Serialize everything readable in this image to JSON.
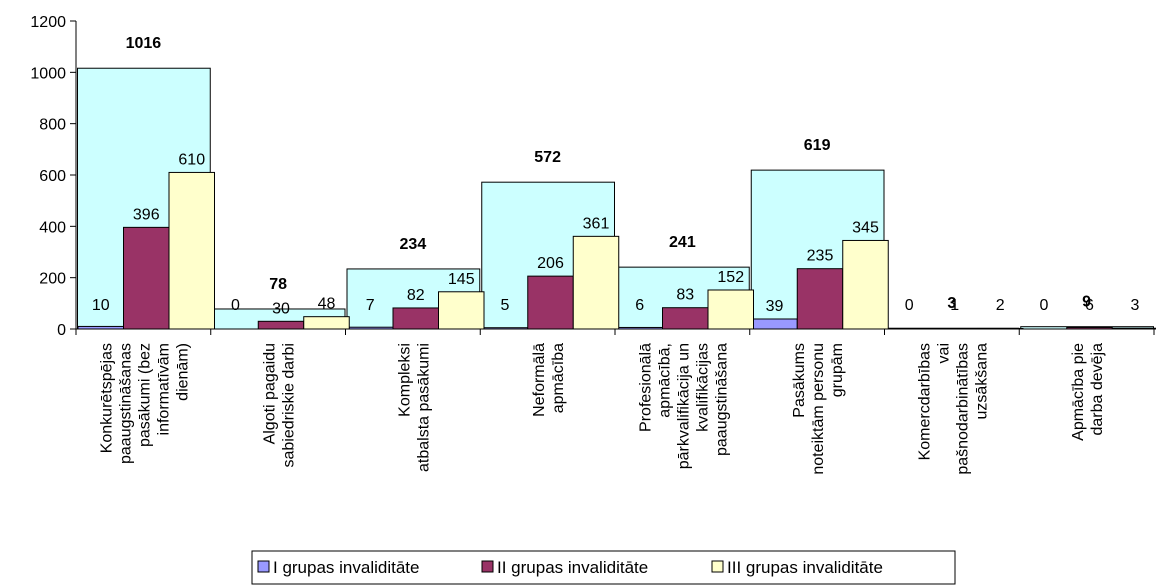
{
  "chart_data": {
    "type": "bar",
    "ylim": [
      0,
      1200
    ],
    "yticks": [
      0,
      200,
      400,
      600,
      800,
      1000,
      1200
    ],
    "categories": [
      {
        "lines": [
          "Konkurētspējas",
          "paaugstināšanas",
          "pasākumi (bez",
          "informatīvām",
          "dienām)"
        ]
      },
      {
        "lines": [
          "Algoti pagaidu",
          "sabiedriskie darbi"
        ]
      },
      {
        "lines": [
          "Kompleksi",
          "atbalsta pasākumi"
        ]
      },
      {
        "lines": [
          "Neformālā",
          "apmācība"
        ]
      },
      {
        "lines": [
          "Profesionālā",
          "apmācībā,",
          "pārkvalifikācija un",
          "kvalifikācijas",
          "paaugstināšana"
        ]
      },
      {
        "lines": [
          "Pasākums",
          "noteiktām personu",
          "grupām"
        ]
      },
      {
        "lines": [
          "Komercdarbības",
          "vai",
          "pašnodarbinātības",
          "uzsākšana"
        ]
      },
      {
        "lines": [
          "Apmācība pie",
          "darba devēja"
        ]
      }
    ],
    "totals": [
      1016,
      78,
      234,
      572,
      241,
      619,
      3,
      9
    ],
    "series": [
      {
        "name": "I grupas invaliditāte",
        "color": "#9999ff",
        "values": [
          10,
          0,
          7,
          5,
          6,
          39,
          0,
          0
        ]
      },
      {
        "name": "II grupas invaliditāte",
        "color": "#993366",
        "values": [
          396,
          30,
          82,
          206,
          83,
          235,
          1,
          6
        ]
      },
      {
        "name": "III grupas invaliditāte",
        "color": "#ffffcc",
        "values": [
          610,
          48,
          145,
          361,
          152,
          345,
          2,
          3
        ]
      }
    ],
    "total_color": "#ccffff",
    "grid": false,
    "legend_position": "bottom-center"
  }
}
